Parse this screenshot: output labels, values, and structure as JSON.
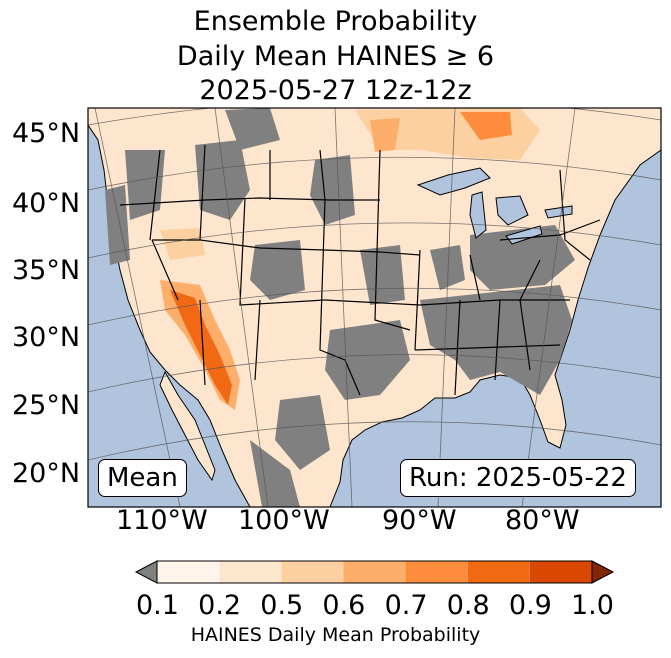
{
  "title": {
    "line1": "Ensemble Probability",
    "line2": "Daily Mean HAINES ≥ 6",
    "line3": "2025-05-27 12z-12z"
  },
  "map": {
    "lat_labels": [
      "45°N",
      "40°N",
      "35°N",
      "30°N",
      "25°N",
      "20°N"
    ],
    "lon_labels": [
      "110°W",
      "100°W",
      "90°W",
      "80°W"
    ],
    "left_box": "Mean",
    "right_box": "Run: 2025-05-22",
    "colors": {
      "ocean": "#b0c4de",
      "land_low": "#ffffff",
      "below_threshold": "#808080",
      "lakes": "#b0c4de",
      "borders": "#000000"
    }
  },
  "colorbar": {
    "ticks": [
      "0.1",
      "0.2",
      "0.5",
      "0.6",
      "0.7",
      "0.8",
      "0.9",
      "1.0"
    ],
    "colors": [
      "#fff5eb",
      "#fee6ce",
      "#fdd0a2",
      "#fdae6b",
      "#fd8d3c",
      "#f16913",
      "#d94801",
      "#a63603"
    ],
    "under_color": "#808080",
    "label": "HAINES Daily Mean Probability"
  }
}
